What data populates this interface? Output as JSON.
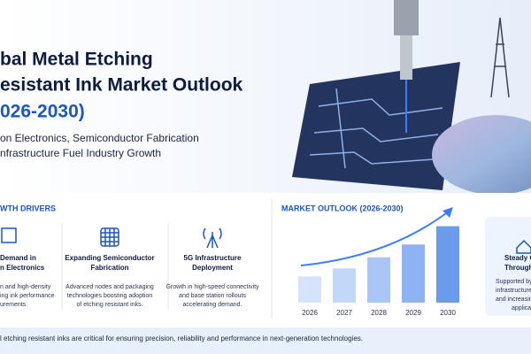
{
  "header": {
    "title": [
      "bal Metal Etching",
      "esistant Ink Market Outlook",
      "026-2030)"
    ],
    "subtitle": [
      "on Electronics, Semiconductor Fabrication",
      "nfrastructure Fuel Industry Growth"
    ]
  },
  "drivers": {
    "heading": "WTH DRIVERS",
    "items": [
      {
        "title": [
          "Demand in",
          "n Electronics"
        ],
        "text": [
          "n and high-density",
          "ing ink performance",
          "urements."
        ]
      },
      {
        "title": [
          "Expanding Semiconductor",
          "Fabrication"
        ],
        "text": [
          "Advanced nodes and packaging",
          "technologies boosting adoption",
          "of etching resistant inks."
        ]
      },
      {
        "title": [
          "5G Infrastructure",
          "Deployment"
        ],
        "text": [
          "Growth in high-speed connectivity",
          "and base station rollouts",
          "accelerating demand."
        ]
      }
    ]
  },
  "chart_data": {
    "type": "bar",
    "title": "MARKET OUTLOOK (2026-2030)",
    "categories": [
      "2026",
      "2027",
      "2028",
      "2029",
      "2030"
    ],
    "values": [
      33,
      43,
      57,
      73,
      96
    ],
    "ylim": [
      0,
      100
    ],
    "colors": [
      "#d6e4fb",
      "#c2d7f9",
      "#a9c6f6",
      "#8db3f2",
      "#6a9cec"
    ]
  },
  "side": {
    "title": [
      "Steady G",
      "Through"
    ],
    "text": [
      "Supported by",
      "infrastructure",
      "and increasin",
      "applica"
    ]
  },
  "footer": "l etching resistant inks are critical for ensuring precision, reliability and performance in next-generation technologies."
}
